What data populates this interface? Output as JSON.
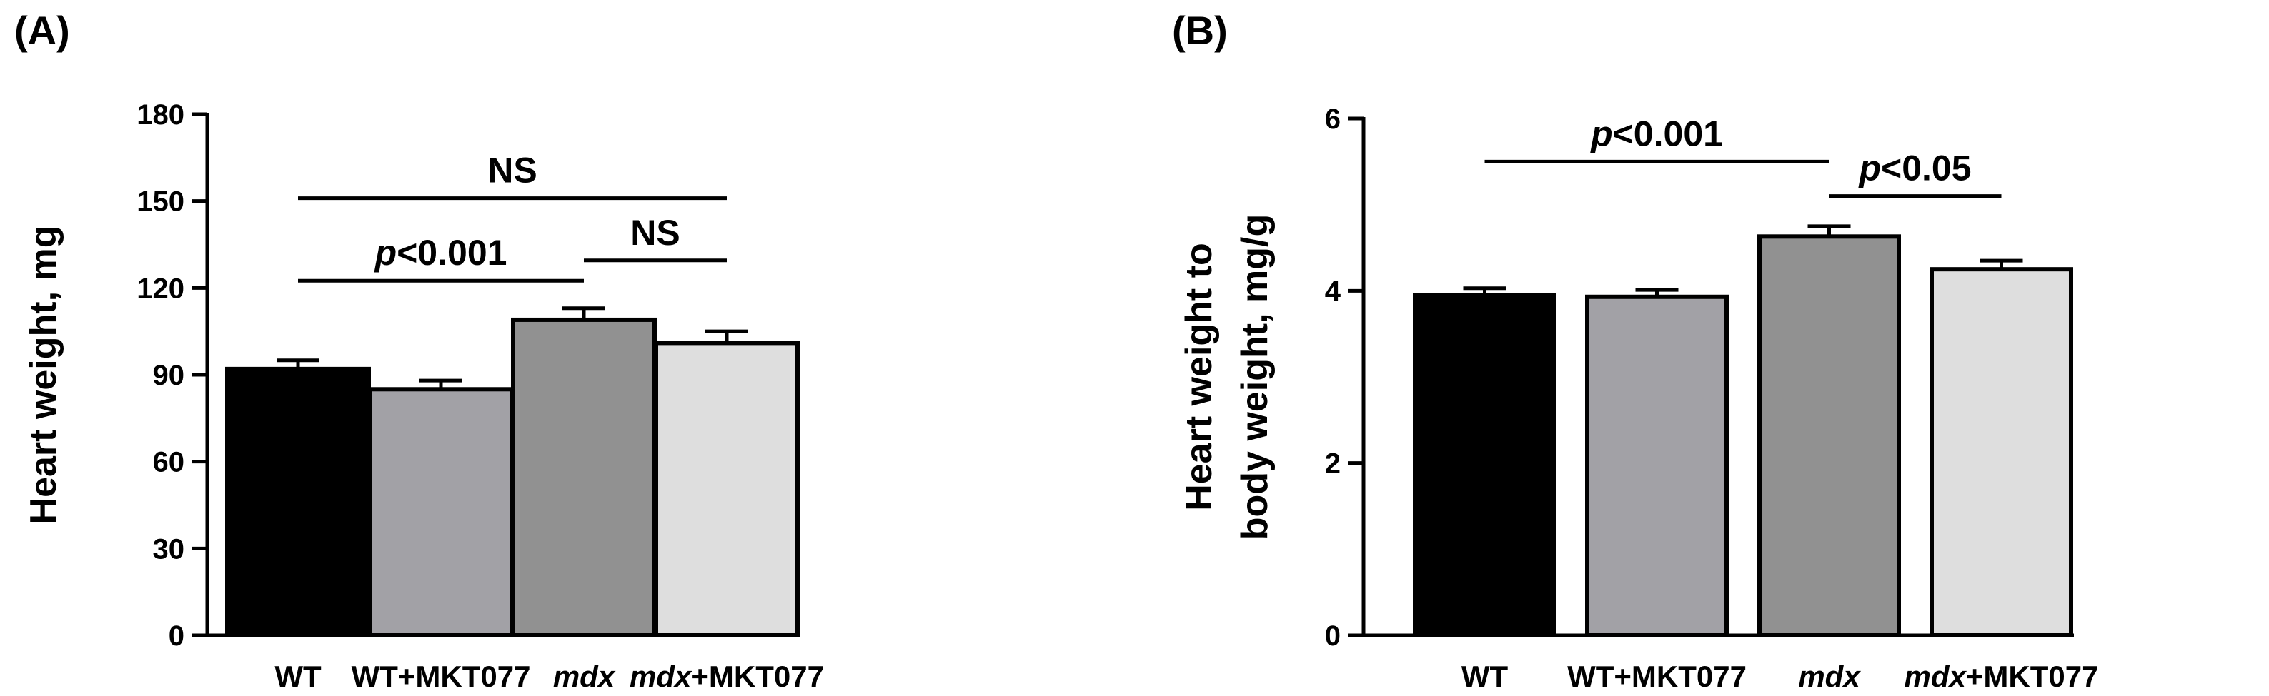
{
  "chart_data": [
    {
      "type": "bar",
      "panel_label": "(A)",
      "categories": [
        {
          "name": "WT",
          "italic": "",
          "suffix": "WT"
        },
        {
          "name": "WT+MKT077",
          "italic": "",
          "suffix": "WT+MKT077"
        },
        {
          "name": "mdx",
          "italic": "mdx",
          "suffix": ""
        },
        {
          "name": "mdx+MKT077",
          "italic": "mdx",
          "suffix": "+MKT077"
        }
      ],
      "values": [
        92,
        85,
        109,
        101
      ],
      "errors": [
        3,
        3,
        4,
        4
      ],
      "colors": [
        "#000000",
        "#a2a1a6",
        "#919191",
        "#dedede"
      ],
      "ylabel_lines": [
        "Heart weight, mg"
      ],
      "ylim": [
        0,
        180
      ],
      "yticks": [
        "0",
        "30",
        "60",
        "90",
        "120",
        "150",
        "180"
      ],
      "ytick_values": [
        0,
        30,
        60,
        90,
        120,
        150,
        180
      ],
      "annotations": [
        {
          "from": 0,
          "to": 3,
          "y": 151,
          "prefix": "",
          "text": "NS"
        },
        {
          "from": 0,
          "to": 2,
          "y": 122.5,
          "prefix": "p",
          "text": "<0.001"
        },
        {
          "from": 2,
          "to": 3,
          "y": 129.5,
          "prefix": "",
          "text": "NS"
        }
      ]
    },
    {
      "type": "bar",
      "panel_label": "(B)",
      "categories": [
        {
          "name": "WT",
          "italic": "",
          "suffix": "WT"
        },
        {
          "name": "WT+MKT077",
          "italic": "",
          "suffix": "WT+MKT077"
        },
        {
          "name": "mdx",
          "italic": "mdx",
          "suffix": ""
        },
        {
          "name": "mdx+MKT077",
          "italic": "mdx",
          "suffix": "+MKT077"
        }
      ],
      "values": [
        3.95,
        3.93,
        4.63,
        4.25
      ],
      "errors": [
        0.08,
        0.08,
        0.12,
        0.1
      ],
      "colors": [
        "#000000",
        "#a2a1a6",
        "#919191",
        "#dedede"
      ],
      "ylabel_lines": [
        "Heart weight to",
        "body weight, mg/g"
      ],
      "ylim": [
        0,
        6
      ],
      "yticks": [
        "0",
        "2",
        "4",
        "6"
      ],
      "ytick_values": [
        0,
        2,
        4,
        6
      ],
      "annotations": [
        {
          "from": 0,
          "to": 2,
          "y": 5.5,
          "prefix": "p",
          "text": "<0.001"
        },
        {
          "from": 2,
          "to": 3,
          "y": 5.1,
          "prefix": "p",
          "text": "<0.05"
        }
      ]
    }
  ]
}
